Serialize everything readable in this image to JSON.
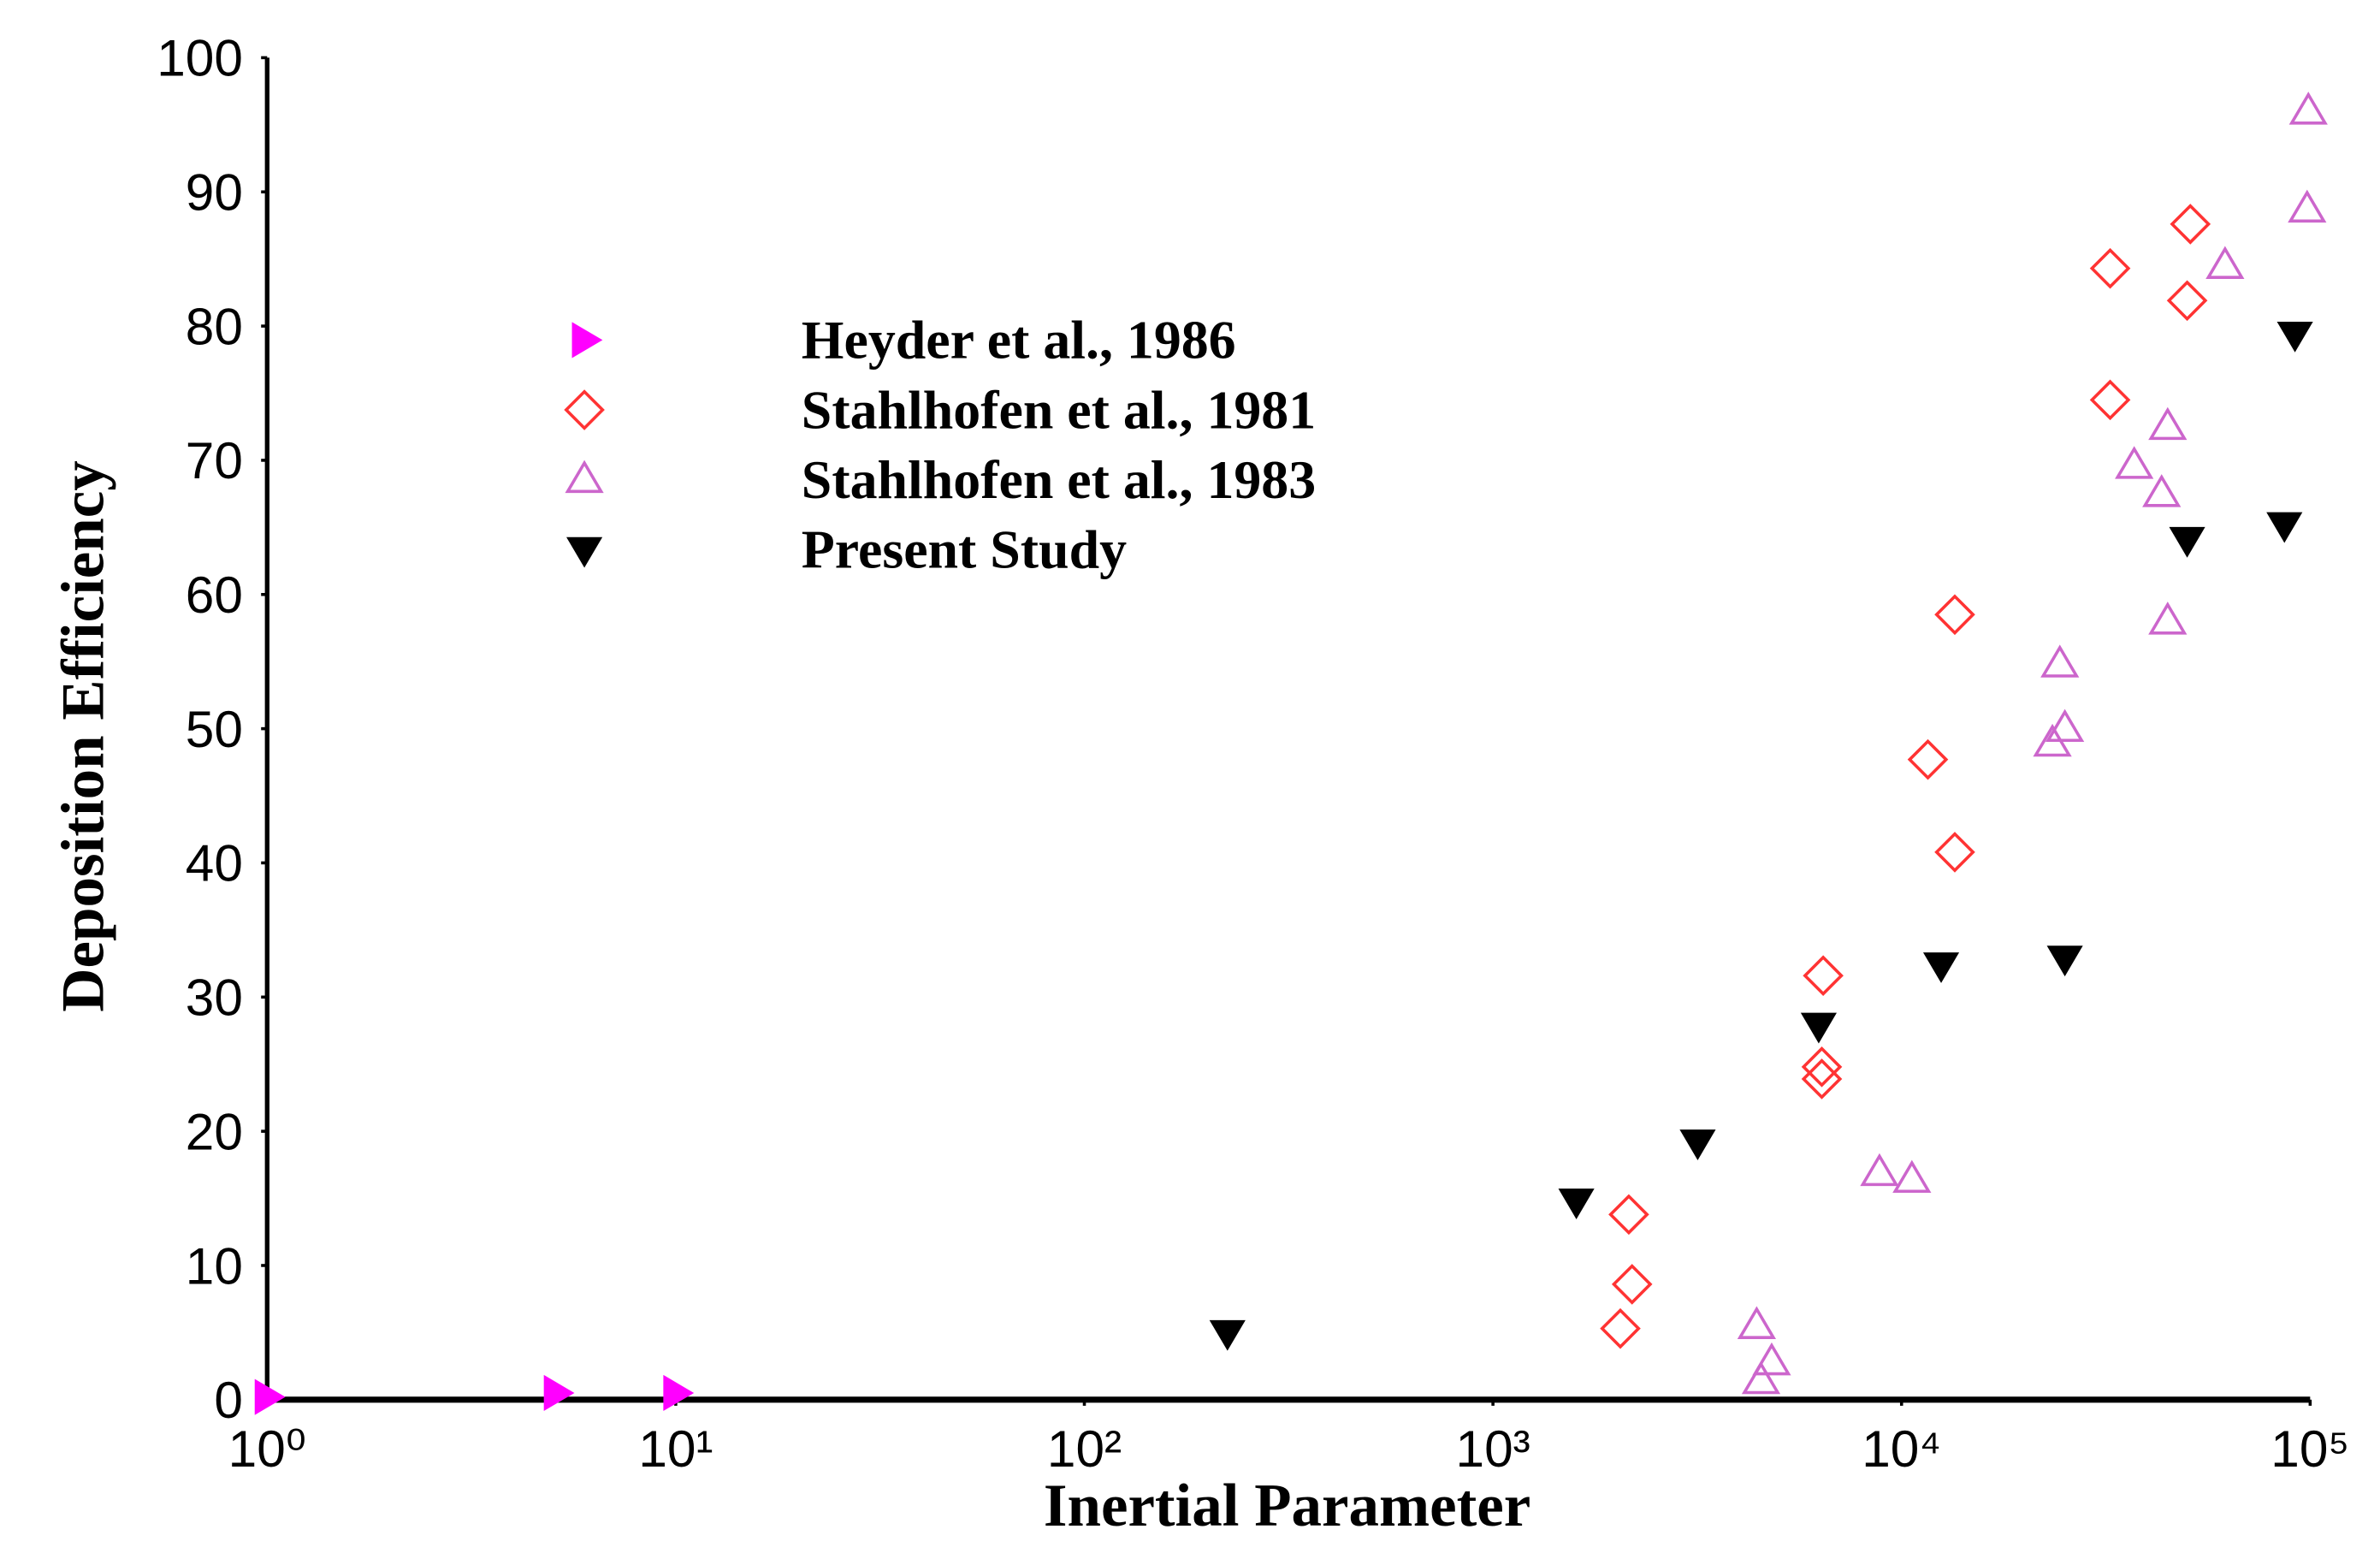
{
  "chart_data": {
    "type": "scatter",
    "xlabel": "Inertial Parameter",
    "ylabel": "Deposition Efficiency",
    "xscale": "log",
    "xlim": [
      1,
      100000
    ],
    "xticks": [
      {
        "value": 1,
        "label": "10⁰"
      },
      {
        "value": 10,
        "label": "10¹"
      },
      {
        "value": 100,
        "label": "10²"
      },
      {
        "value": 1000,
        "label": "10³"
      },
      {
        "value": 10000,
        "label": "10⁴"
      },
      {
        "value": 100000,
        "label": "10⁵"
      }
    ],
    "ylim": [
      0,
      100
    ],
    "yticks": [
      0,
      10,
      20,
      30,
      40,
      50,
      60,
      70,
      80,
      90,
      100
    ],
    "legend": "upper left",
    "series": [
      {
        "name": "Heyder et al., 1986",
        "color": "#ff00ff",
        "marker": "triangle-right",
        "filled": true,
        "x": [
          1,
          5.1,
          10
        ],
        "values": [
          0.2,
          0.5,
          0.5
        ]
      },
      {
        "name": "Stahlhofen et al., 1981",
        "color": "#ff3333",
        "marker": "diamond",
        "filled": false,
        "x": [
          2050,
          2190,
          2150,
          6380,
          6380,
          6430,
          11600,
          13500,
          13500,
          32400,
          32400,
          50000,
          50900
        ],
        "values": [
          5.3,
          8.6,
          13.8,
          23.9,
          24.8,
          31.6,
          47.7,
          40.8,
          58.5,
          74.5,
          84.3,
          81.9,
          87.6
        ]
      },
      {
        "name": "Stahlhofen et al., 1983",
        "color": "#cc66cc",
        "marker": "triangle-up",
        "filled": false,
        "x": [
          4420,
          4810,
          4530,
          8830,
          10600,
          23400,
          24400,
          25100,
          37100,
          43300,
          44800,
          44800,
          61900,
          98300,
          99000
        ],
        "values": [
          5.5,
          2.8,
          1.4,
          16.9,
          16.4,
          48.9,
          54.8,
          50,
          69.6,
          67.5,
          58,
          72.5,
          84.5,
          88.7,
          96
        ]
      },
      {
        "name": "Present Study",
        "color": "#000000",
        "marker": "triangle-down",
        "filled": true,
        "x": [
          224,
          1600,
          3170,
          6270,
          12500,
          25100,
          50000,
          86500,
          91800
        ],
        "values": [
          5,
          14.8,
          19.2,
          27.9,
          32.4,
          32.9,
          64.1,
          65.2,
          79.4
        ]
      }
    ]
  }
}
